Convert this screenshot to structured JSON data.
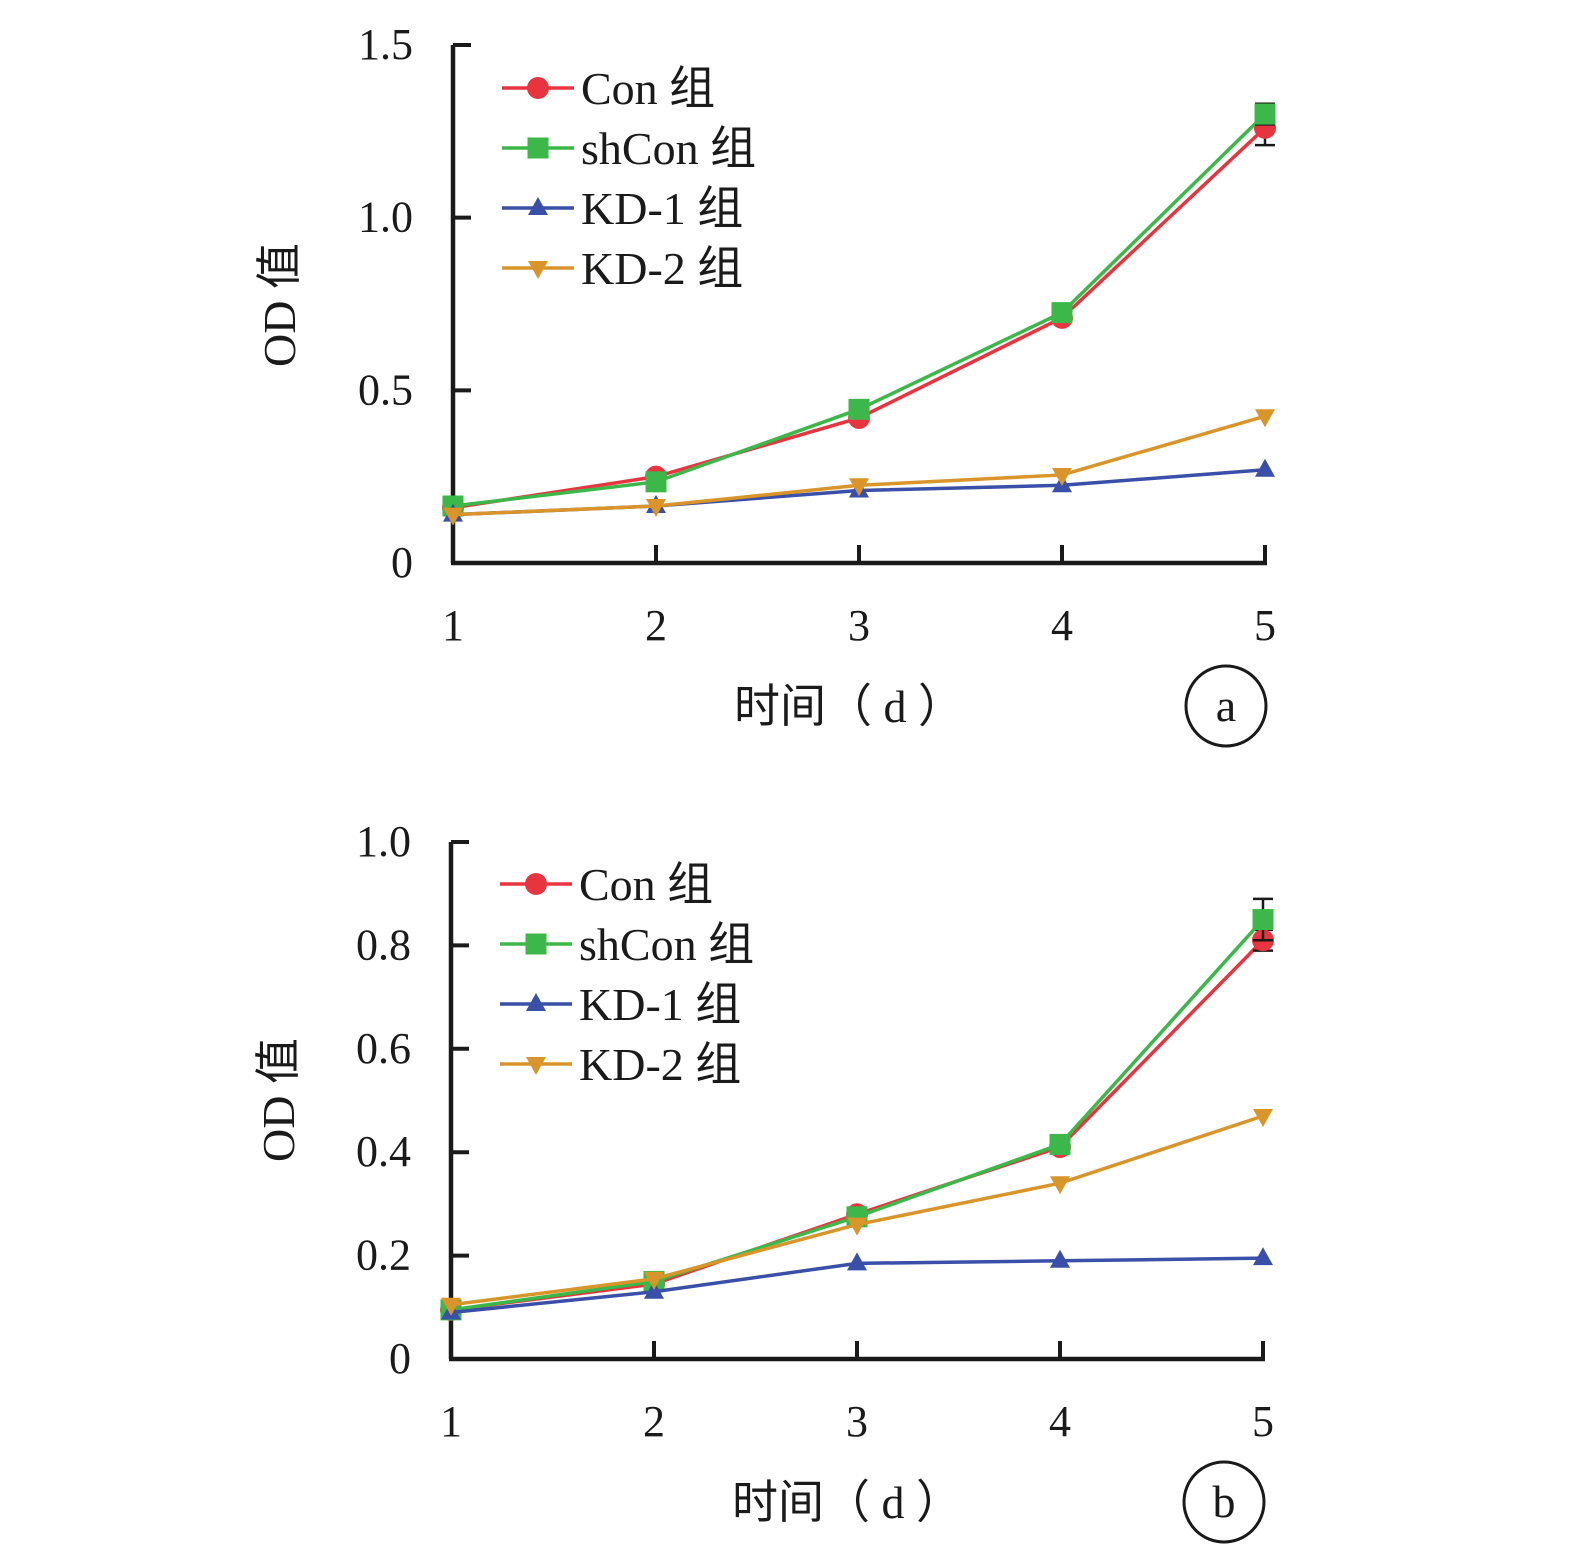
{
  "chart_data": [
    {
      "type": "line",
      "panel_label": "a",
      "xlabel": "时间（ d ）",
      "ylabel": "OD 值",
      "x": [
        1,
        2,
        3,
        4,
        5
      ],
      "x_tick_labels": [
        "1",
        "2",
        "3",
        "4",
        "5"
      ],
      "ylim": [
        0,
        1.5
      ],
      "y_ticks": [
        0,
        0.5,
        1.0,
        1.5
      ],
      "y_tick_labels": [
        "0",
        "0.5",
        "1.0",
        "1.5"
      ],
      "legend_position": "top-left",
      "grid": false,
      "series": [
        {
          "name": "Con 组",
          "color": "#e8343f",
          "marker": "circle",
          "values": [
            0.16,
            0.25,
            0.42,
            0.71,
            1.26
          ],
          "error": [
            0,
            0,
            0,
            0,
            0.05
          ]
        },
        {
          "name": "shCon 组",
          "color": "#3cb84a",
          "marker": "square",
          "values": [
            0.165,
            0.235,
            0.445,
            0.725,
            1.3
          ],
          "error": [
            0,
            0,
            0,
            0,
            0.03
          ]
        },
        {
          "name": "KD-1 组",
          "color": "#3a4fa8",
          "marker": "triangle-up",
          "values": [
            0.14,
            0.165,
            0.21,
            0.225,
            0.27
          ],
          "error": [
            0,
            0,
            0,
            0,
            0
          ]
        },
        {
          "name": "KD-2 组",
          "color": "#d9952a",
          "marker": "triangle-down",
          "values": [
            0.14,
            0.165,
            0.225,
            0.255,
            0.425
          ],
          "error": [
            0,
            0,
            0,
            0,
            0
          ]
        }
      ]
    },
    {
      "type": "line",
      "panel_label": "b",
      "xlabel": "时间（ d ）",
      "ylabel": "OD 值",
      "x": [
        1,
        2,
        3,
        4,
        5
      ],
      "x_tick_labels": [
        "1",
        "2",
        "3",
        "4",
        "5"
      ],
      "ylim": [
        0,
        1.0
      ],
      "y_ticks": [
        0,
        0.2,
        0.4,
        0.6,
        0.8,
        1.0
      ],
      "y_tick_labels": [
        "0",
        "0.2",
        "0.4",
        "0.6",
        "0.8",
        "1.0"
      ],
      "legend_position": "top-left",
      "grid": false,
      "series": [
        {
          "name": "Con 组",
          "color": "#e8343f",
          "marker": "circle",
          "values": [
            0.095,
            0.145,
            0.28,
            0.41,
            0.81
          ],
          "error": [
            0,
            0,
            0,
            0,
            0.02
          ]
        },
        {
          "name": "shCon 组",
          "color": "#3cb84a",
          "marker": "square",
          "values": [
            0.095,
            0.15,
            0.275,
            0.415,
            0.85
          ],
          "error": [
            0,
            0,
            0,
            0,
            0.04
          ]
        },
        {
          "name": "KD-1 组",
          "color": "#3a4fa8",
          "marker": "triangle-up",
          "values": [
            0.09,
            0.13,
            0.185,
            0.19,
            0.195
          ],
          "error": [
            0,
            0,
            0,
            0,
            0
          ]
        },
        {
          "name": "KD-2 组",
          "color": "#d9952a",
          "marker": "triangle-down",
          "values": [
            0.105,
            0.155,
            0.26,
            0.34,
            0.47
          ],
          "error": [
            0,
            0,
            0,
            0,
            0
          ]
        }
      ]
    }
  ]
}
